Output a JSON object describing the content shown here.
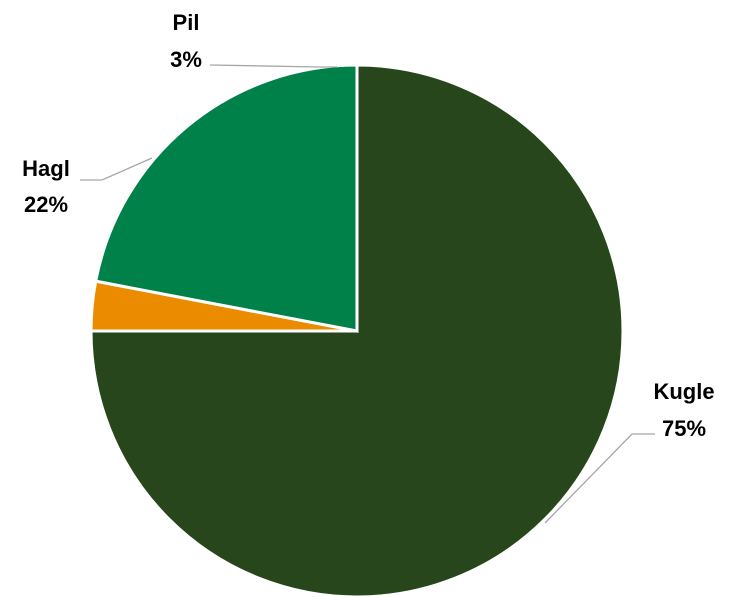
{
  "chart_data": {
    "type": "pie",
    "title": "",
    "start_angle_deg": 0,
    "direction": "clockwise",
    "legend": "none",
    "slices": [
      {
        "label": "Kugle",
        "value": 75,
        "value_label": "75%",
        "color": "#27461c"
      },
      {
        "label": "Pil",
        "value": 3,
        "value_label": "3%",
        "color": "#ea8b00"
      },
      {
        "label": "Hagl",
        "value": 22,
        "value_label": "22%",
        "color": "#00814a"
      }
    ]
  }
}
